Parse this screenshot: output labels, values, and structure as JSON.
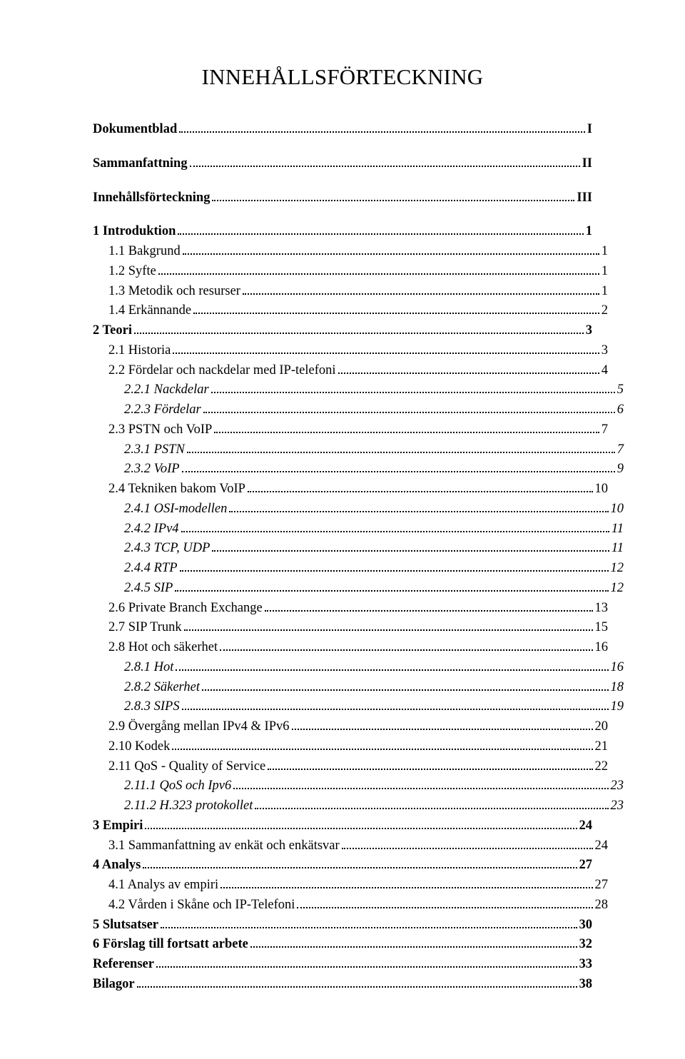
{
  "title": "INNEHÅLLSFÖRTECKNING",
  "entries": [
    {
      "level": 0,
      "label": "Dokumentblad",
      "page": "I",
      "gap_after": true
    },
    {
      "level": 0,
      "label": "Sammanfattning",
      "page": "II",
      "gap_after": true
    },
    {
      "level": 0,
      "label": "Innehållsförteckning",
      "page": "III",
      "gap_after": true
    },
    {
      "level": 0,
      "label": "1 Introduktion",
      "page": "1"
    },
    {
      "level": 1,
      "label": "1.1 Bakgrund",
      "page": "1"
    },
    {
      "level": 1,
      "label": "1.2 Syfte",
      "page": "1"
    },
    {
      "level": 1,
      "label": "1.3 Metodik och resurser",
      "page": "1"
    },
    {
      "level": 1,
      "label": "1.4 Erkännande",
      "page": "2"
    },
    {
      "level": 0,
      "label": "2 Teori",
      "page": "3"
    },
    {
      "level": 1,
      "label": "2.1 Historia",
      "page": "3"
    },
    {
      "level": 1,
      "label": "2.2 Fördelar och nackdelar med IP-telefoni",
      "page": "4"
    },
    {
      "level": 2,
      "label": "2.2.1 Nackdelar",
      "page": "5"
    },
    {
      "level": 2,
      "label": "2.2.3 Fördelar",
      "page": "6"
    },
    {
      "level": 1,
      "label": "2.3 PSTN och VoIP",
      "page": "7"
    },
    {
      "level": 2,
      "label": "2.3.1 PSTN",
      "page": "7"
    },
    {
      "level": 2,
      "label": "2.3.2 VoIP",
      "page": "9"
    },
    {
      "level": 1,
      "label": "2.4 Tekniken bakom VoIP",
      "page": "10"
    },
    {
      "level": 2,
      "label": "2.4.1 OSI-modellen",
      "page": "10"
    },
    {
      "level": 2,
      "label": "2.4.2 IPv4",
      "page": "11"
    },
    {
      "level": 2,
      "label": "2.4.3 TCP, UDP",
      "page": "11"
    },
    {
      "level": 2,
      "label": "2.4.4 RTP",
      "page": "12"
    },
    {
      "level": 2,
      "label": "2.4.5 SIP",
      "page": "12"
    },
    {
      "level": 1,
      "label": "2.6 Private Branch Exchange",
      "page": "13"
    },
    {
      "level": 1,
      "label": "2.7 SIP Trunk",
      "page": "15"
    },
    {
      "level": 1,
      "label": "2.8 Hot och säkerhet",
      "page": "16"
    },
    {
      "level": 2,
      "label": "2.8.1 Hot",
      "page": "16"
    },
    {
      "level": 2,
      "label": "2.8.2 Säkerhet",
      "page": "18"
    },
    {
      "level": 2,
      "label": "2.8.3 SIPS",
      "page": "19"
    },
    {
      "level": 1,
      "label": "2.9 Övergång mellan IPv4 & IPv6",
      "page": "20"
    },
    {
      "level": 1,
      "label": "2.10 Kodek",
      "page": "21"
    },
    {
      "level": 1,
      "label": "2.11 QoS - Quality of Service",
      "page": "22"
    },
    {
      "level": 2,
      "label": "2.11.1 QoS och Ipv6",
      "page": "23"
    },
    {
      "level": 2,
      "label": "2.11.2 H.323 protokollet",
      "page": "23"
    },
    {
      "level": 0,
      "label": "3 Empiri",
      "page": "24"
    },
    {
      "level": 1,
      "label": "3.1 Sammanfattning av enkät och enkätsvar",
      "page": "24"
    },
    {
      "level": 0,
      "label": "4 Analys",
      "page": "27"
    },
    {
      "level": 1,
      "label": "4.1 Analys av empiri",
      "page": "27"
    },
    {
      "level": 1,
      "label": "4.2 Vården i Skåne och IP-Telefoni",
      "page": "28"
    },
    {
      "level": 0,
      "label": "5 Slutsatser",
      "page": "30"
    },
    {
      "level": 0,
      "label": "6 Förslag till fortsatt arbete",
      "page": "32"
    },
    {
      "level": 0,
      "label": "Referenser",
      "page": "33"
    },
    {
      "level": 0,
      "label": "Bilagor",
      "page": "38"
    }
  ]
}
